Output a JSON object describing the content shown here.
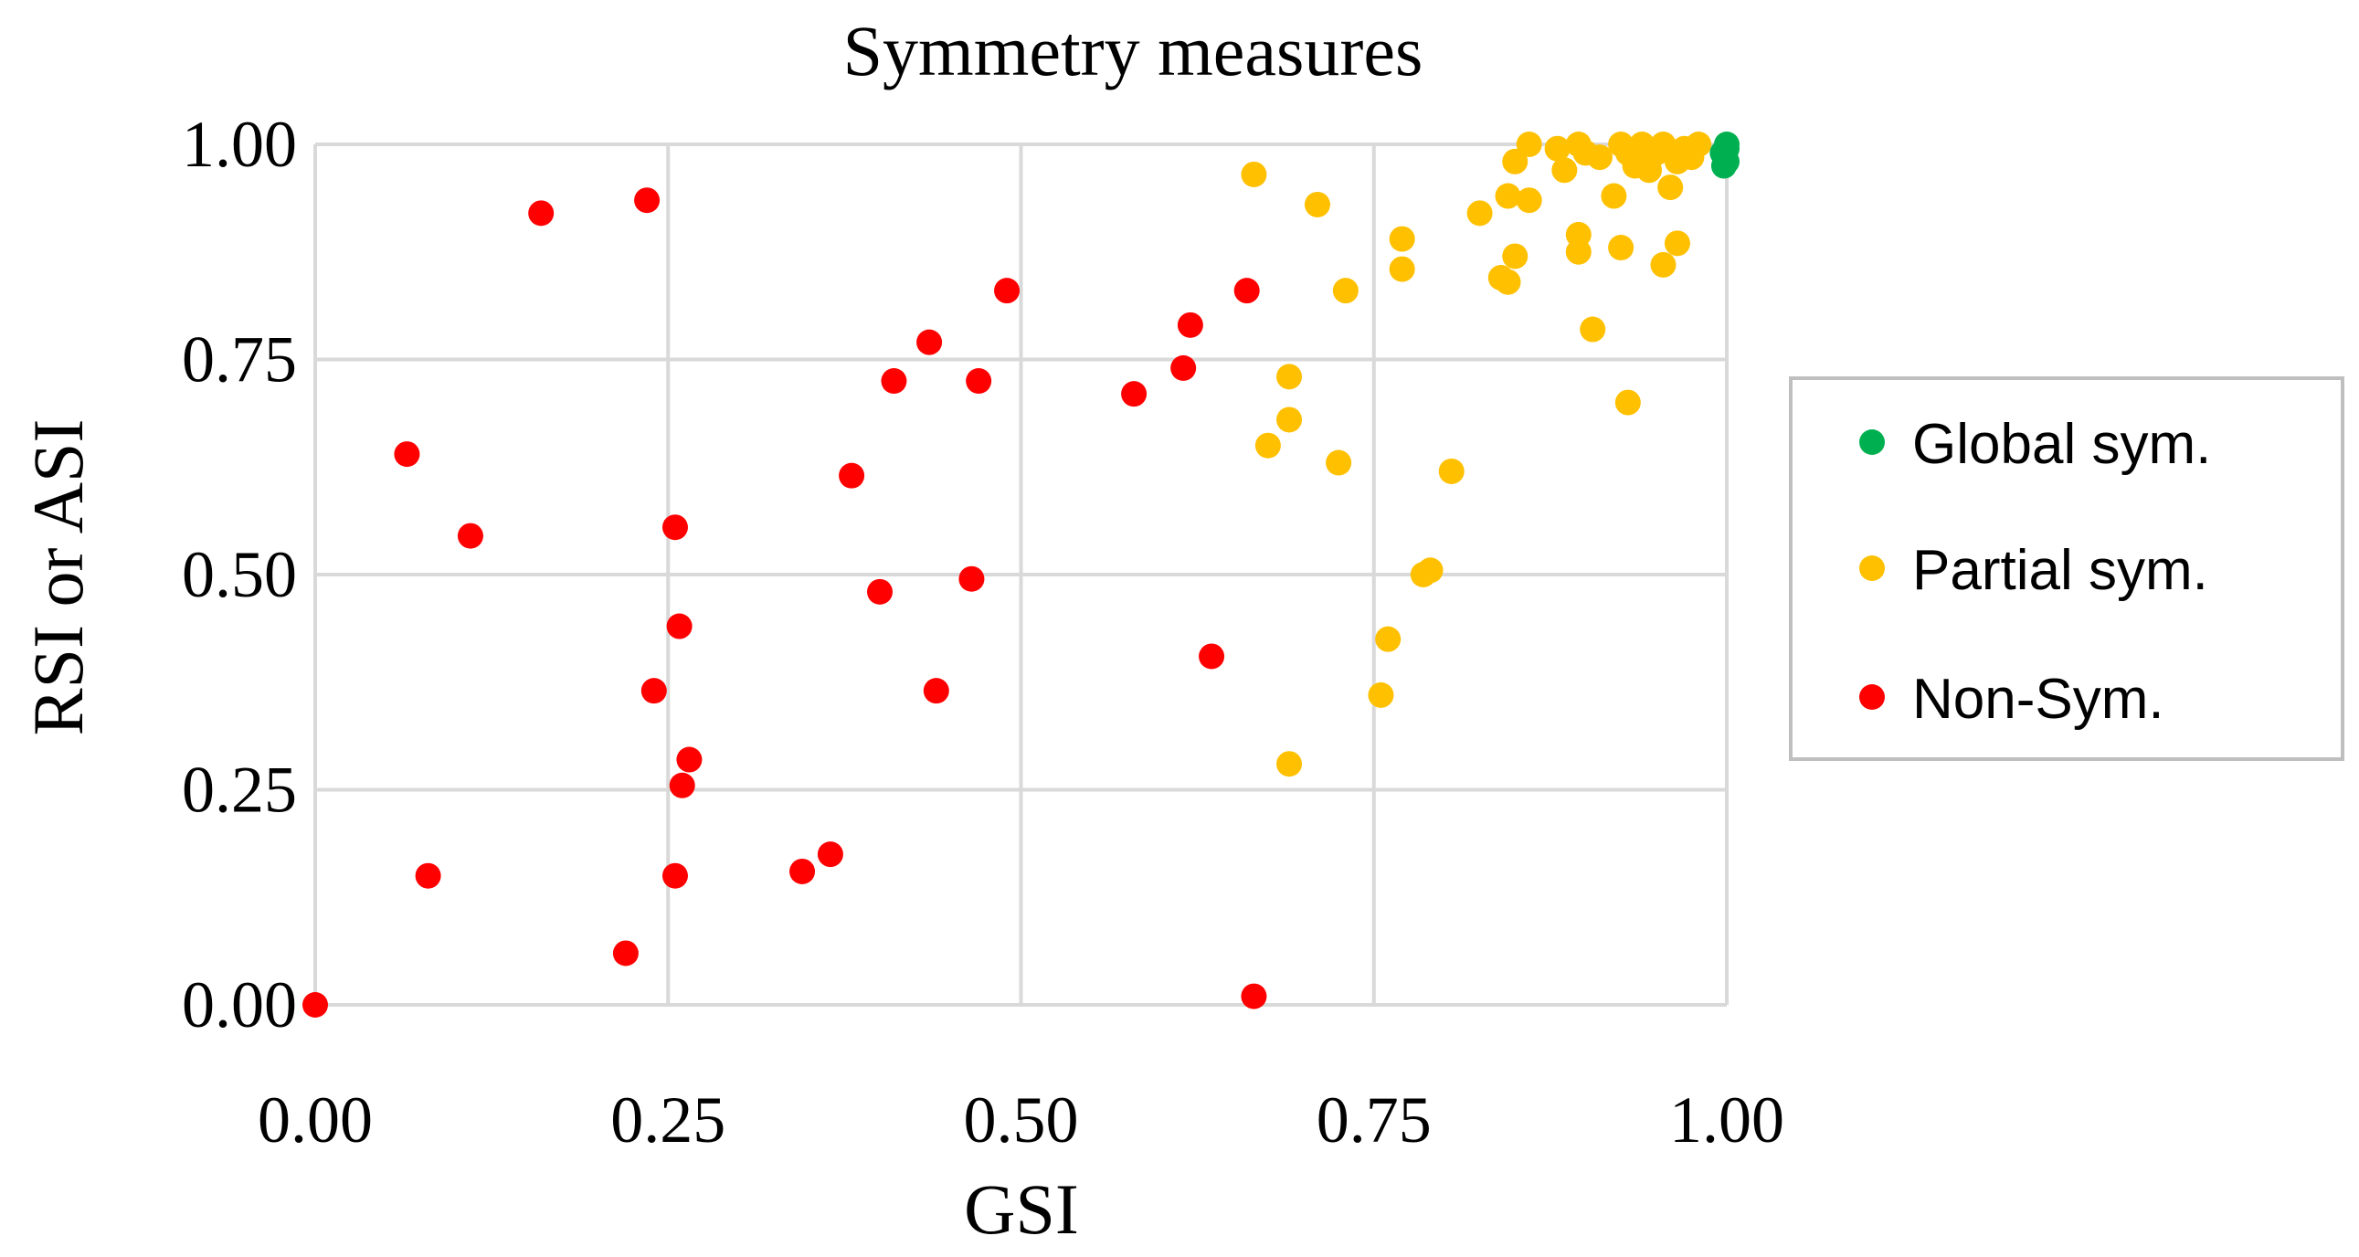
{
  "chart_data": {
    "type": "scatter",
    "title": "Symmetry measures",
    "xlabel": "GSI",
    "ylabel": "RSI or ASI",
    "xlim": [
      0,
      1
    ],
    "ylim": [
      0,
      1
    ],
    "xticks": [
      "0.00",
      "0.25",
      "0.50",
      "0.75",
      "1.00"
    ],
    "yticks": [
      "0.00",
      "0.25",
      "0.50",
      "0.75",
      "1.00"
    ],
    "grid": true,
    "legend_position": "right",
    "series": [
      {
        "name": "Global sym.",
        "color": "#00b050",
        "points": [
          [
            0.998,
            0.975
          ],
          [
            1.0,
            0.995
          ],
          [
            0.999,
            0.985
          ],
          [
            1.0,
            1.0
          ],
          [
            0.997,
            0.99
          ],
          [
            1.0,
            0.98
          ]
        ]
      },
      {
        "name": "Partial sym.",
        "color": "#ffc000",
        "points": [
          [
            0.665,
            0.965
          ],
          [
            0.71,
            0.93
          ],
          [
            0.77,
            0.89
          ],
          [
            0.77,
            0.855
          ],
          [
            0.73,
            0.83
          ],
          [
            0.69,
            0.73
          ],
          [
            0.69,
            0.68
          ],
          [
            0.675,
            0.65
          ],
          [
            0.725,
            0.63
          ],
          [
            0.805,
            0.62
          ],
          [
            0.785,
            0.5
          ],
          [
            0.79,
            0.505
          ],
          [
            0.76,
            0.425
          ],
          [
            0.755,
            0.36
          ],
          [
            0.69,
            0.28
          ],
          [
            0.825,
            0.92
          ],
          [
            0.845,
            0.94
          ],
          [
            0.86,
            0.935
          ],
          [
            0.85,
            0.87
          ],
          [
            0.84,
            0.845
          ],
          [
            0.845,
            0.84
          ],
          [
            0.85,
            0.98
          ],
          [
            0.86,
            1.0
          ],
          [
            0.88,
            0.995
          ],
          [
            0.895,
            1.0
          ],
          [
            0.9,
            0.99
          ],
          [
            0.885,
            0.97
          ],
          [
            0.895,
            0.895
          ],
          [
            0.895,
            0.875
          ],
          [
            0.905,
            0.785
          ],
          [
            0.93,
            0.7
          ],
          [
            0.92,
            0.94
          ],
          [
            0.925,
            0.88
          ],
          [
            0.925,
            1.0
          ],
          [
            0.93,
            0.99
          ],
          [
            0.935,
            0.975
          ],
          [
            0.945,
            0.97
          ],
          [
            0.95,
            0.99
          ],
          [
            0.955,
            1.0
          ],
          [
            0.96,
            0.95
          ],
          [
            0.965,
            0.885
          ],
          [
            0.955,
            0.86
          ],
          [
            0.97,
            0.995
          ],
          [
            0.975,
            0.985
          ],
          [
            0.98,
            1.0
          ],
          [
            0.94,
            1.0
          ],
          [
            0.965,
            0.98
          ],
          [
            0.91,
            0.985
          ]
        ]
      },
      {
        "name": "Non-Sym.",
        "color": "#ff0000",
        "points": [
          [
            0.0,
            0.0
          ],
          [
            0.065,
            0.64
          ],
          [
            0.08,
            0.15
          ],
          [
            0.11,
            0.545
          ],
          [
            0.16,
            0.92
          ],
          [
            0.22,
            0.06
          ],
          [
            0.235,
            0.935
          ],
          [
            0.24,
            0.365
          ],
          [
            0.255,
            0.555
          ],
          [
            0.255,
            0.15
          ],
          [
            0.258,
            0.44
          ],
          [
            0.26,
            0.255
          ],
          [
            0.265,
            0.285
          ],
          [
            0.345,
            0.155
          ],
          [
            0.365,
            0.175
          ],
          [
            0.38,
            0.615
          ],
          [
            0.4,
            0.48
          ],
          [
            0.41,
            0.725
          ],
          [
            0.435,
            0.77
          ],
          [
            0.44,
            0.365
          ],
          [
            0.465,
            0.495
          ],
          [
            0.47,
            0.725
          ],
          [
            0.49,
            0.83
          ],
          [
            0.58,
            0.71
          ],
          [
            0.615,
            0.74
          ],
          [
            0.62,
            0.79
          ],
          [
            0.635,
            0.405
          ],
          [
            0.66,
            0.83
          ],
          [
            0.665,
            0.01
          ]
        ]
      }
    ]
  }
}
